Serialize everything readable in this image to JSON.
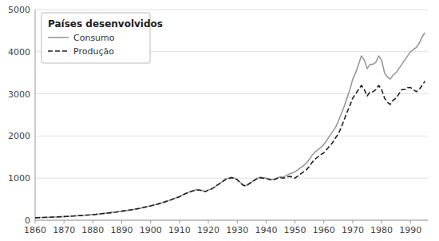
{
  "chart_data": {
    "type": "line",
    "title": "Países desenvolvidos",
    "x": [
      1860,
      1861,
      1862,
      1863,
      1864,
      1865,
      1866,
      1867,
      1868,
      1869,
      1870,
      1871,
      1872,
      1873,
      1874,
      1875,
      1876,
      1877,
      1878,
      1879,
      1880,
      1881,
      1882,
      1883,
      1884,
      1885,
      1886,
      1887,
      1888,
      1889,
      1890,
      1891,
      1892,
      1893,
      1894,
      1895,
      1896,
      1897,
      1898,
      1899,
      1900,
      1901,
      1902,
      1903,
      1904,
      1905,
      1906,
      1907,
      1908,
      1909,
      1910,
      1911,
      1912,
      1913,
      1914,
      1915,
      1916,
      1917,
      1918,
      1919,
      1920,
      1921,
      1922,
      1923,
      1924,
      1925,
      1926,
      1927,
      1928,
      1929,
      1930,
      1931,
      1932,
      1933,
      1934,
      1935,
      1936,
      1937,
      1938,
      1939,
      1940,
      1941,
      1942,
      1943,
      1944,
      1945,
      1946,
      1947,
      1948,
      1949,
      1950,
      1951,
      1952,
      1953,
      1954,
      1955,
      1956,
      1957,
      1958,
      1959,
      1960,
      1961,
      1962,
      1963,
      1964,
      1965,
      1966,
      1967,
      1968,
      1969,
      1970,
      1971,
      1972,
      1973,
      1974,
      1975,
      1976,
      1977,
      1978,
      1979,
      1980,
      1981,
      1982,
      1983,
      1984,
      1985,
      1986,
      1987,
      1988,
      1989,
      1990,
      1991,
      1992,
      1993,
      1994,
      1995
    ],
    "series": [
      {
        "name": "Consumo",
        "color": "#999999",
        "line_style": "solid",
        "values": [
          60,
          62,
          65,
          67,
          70,
          72,
          75,
          77,
          80,
          83,
          87,
          90,
          95,
          100,
          105,
          108,
          112,
          117,
          122,
          127,
          135,
          140,
          148,
          155,
          163,
          170,
          178,
          187,
          195,
          205,
          215,
          225,
          235,
          245,
          255,
          268,
          280,
          295,
          310,
          325,
          340,
          360,
          375,
          395,
          415,
          438,
          460,
          485,
          510,
          535,
          560,
          595,
          630,
          660,
          685,
          710,
          730,
          720,
          700,
          680,
          720,
          740,
          780,
          830,
          880,
          930,
          980,
          1000,
          1020,
          1000,
          970,
          900,
          840,
          820,
          870,
          910,
          960,
          1000,
          1020,
          1010,
          1000,
          980,
          960,
          980,
          1010,
          1030,
          1030,
          1060,
          1100,
          1120,
          1150,
          1200,
          1250,
          1300,
          1360,
          1450,
          1550,
          1620,
          1680,
          1730,
          1800,
          1900,
          2000,
          2100,
          2200,
          2350,
          2520,
          2700,
          2900,
          3100,
          3350,
          3500,
          3700,
          3900,
          3800,
          3600,
          3700,
          3700,
          3750,
          3900,
          3800,
          3500,
          3400,
          3350,
          3450,
          3500,
          3600,
          3700,
          3800,
          3900,
          4000,
          4050,
          4100,
          4200,
          4350,
          4450
        ]
      },
      {
        "name": "Produção",
        "color": "#222222",
        "line_style": "dashed",
        "values": [
          60,
          62,
          65,
          67,
          70,
          72,
          75,
          77,
          80,
          83,
          87,
          90,
          95,
          100,
          105,
          108,
          112,
          117,
          122,
          127,
          135,
          140,
          148,
          155,
          163,
          170,
          178,
          187,
          195,
          205,
          215,
          225,
          235,
          245,
          255,
          268,
          280,
          295,
          310,
          325,
          340,
          360,
          375,
          395,
          415,
          438,
          460,
          485,
          510,
          535,
          560,
          595,
          630,
          660,
          680,
          700,
          720,
          715,
          700,
          680,
          720,
          740,
          780,
          830,
          875,
          920,
          970,
          990,
          1010,
          990,
          960,
          890,
          835,
          810,
          860,
          900,
          950,
          990,
          1010,
          1000,
          990,
          970,
          950,
          970,
          1000,
          1010,
          1000,
          1020,
          1040,
          1030,
          1000,
          1050,
          1100,
          1150,
          1200,
          1280,
          1380,
          1450,
          1510,
          1560,
          1600,
          1680,
          1760,
          1840,
          1950,
          2050,
          2200,
          2380,
          2560,
          2720,
          2900,
          3000,
          3100,
          3200,
          3100,
          2950,
          3050,
          3050,
          3100,
          3200,
          3100,
          2900,
          2800,
          2750,
          2850,
          2900,
          3000,
          3100,
          3100,
          3150,
          3150,
          3100,
          3050,
          3100,
          3200,
          3300
        ]
      }
    ],
    "xlim": [
      1860,
      1996
    ],
    "ylim": [
      0,
      5000
    ],
    "xticks": [
      1860,
      1870,
      1880,
      1890,
      1900,
      1910,
      1920,
      1930,
      1940,
      1950,
      1960,
      1970,
      1980,
      1990
    ],
    "yticks": [
      0,
      1000,
      2000,
      3000,
      4000,
      5000
    ],
    "grid": true,
    "legend": "top-left"
  }
}
